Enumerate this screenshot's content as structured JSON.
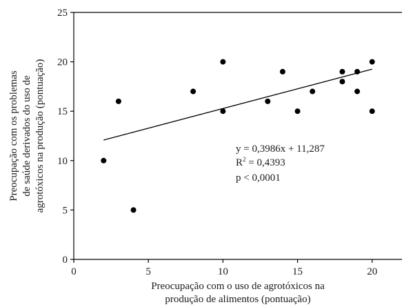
{
  "chart_data": {
    "type": "scatter",
    "xlabel_lines": [
      "Preocupação com o uso de agrotóxicos na",
      "produção de alimentos (pontuação)"
    ],
    "ylabel_lines": [
      "Preocupação com os problemas",
      "de saúde derivados do uso de",
      "agrotóxicos na produção  (pontuação)"
    ],
    "xlim": [
      0,
      22
    ],
    "ylim": [
      0,
      25
    ],
    "xticks": [
      0,
      5,
      10,
      15,
      20
    ],
    "yticks": [
      0,
      5,
      10,
      15,
      20,
      25
    ],
    "points": [
      {
        "x": 2,
        "y": 10
      },
      {
        "x": 3,
        "y": 16
      },
      {
        "x": 4,
        "y": 5
      },
      {
        "x": 8,
        "y": 17
      },
      {
        "x": 10,
        "y": 20
      },
      {
        "x": 10,
        "y": 15
      },
      {
        "x": 13,
        "y": 16
      },
      {
        "x": 14,
        "y": 19
      },
      {
        "x": 15,
        "y": 15
      },
      {
        "x": 16,
        "y": 17
      },
      {
        "x": 18,
        "y": 19
      },
      {
        "x": 18,
        "y": 18
      },
      {
        "x": 19,
        "y": 19
      },
      {
        "x": 19,
        "y": 17
      },
      {
        "x": 20,
        "y": 20
      },
      {
        "x": 20,
        "y": 15
      }
    ],
    "regression": {
      "slope": 0.3986,
      "intercept": 11.287,
      "x_range": [
        2,
        20
      ],
      "equation": "y = 0,3986x + 11,287",
      "r2_base": "R",
      "r2_exp": "2",
      "r2_rest": " = 0,4393",
      "p_value": "p < 0,0001"
    },
    "grid": false,
    "colors": {
      "marker": "#000000",
      "line": "#000000",
      "axis": "#000000"
    }
  }
}
